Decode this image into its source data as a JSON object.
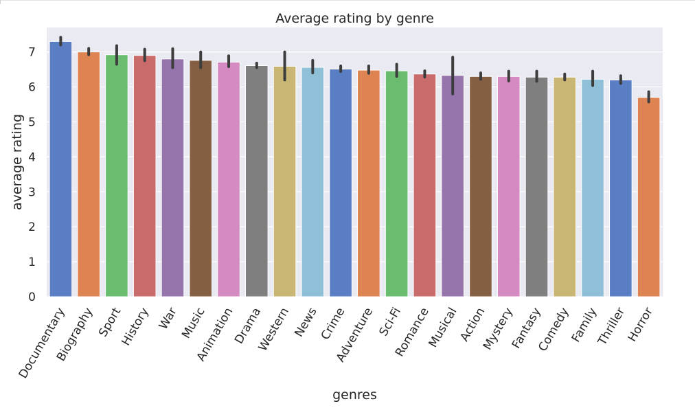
{
  "chart_data": {
    "type": "bar",
    "title": "Average rating by genre",
    "xlabel": "genres",
    "ylabel": "average rating",
    "ylim": [
      0,
      7.7
    ],
    "yticks": [
      0,
      1,
      2,
      3,
      4,
      5,
      6,
      7
    ],
    "grid": true,
    "categories": [
      "Documentary",
      "Biography",
      "Sport",
      "History",
      "War",
      "Music",
      "Animation",
      "Drama",
      "Western",
      "News",
      "Crime",
      "Adventure",
      "Sci-Fi",
      "Romance",
      "Musical",
      "Action",
      "Mystery",
      "Fantasy",
      "Comedy",
      "Family",
      "Thriller",
      "Horror"
    ],
    "values": [
      7.3,
      7.0,
      6.92,
      6.9,
      6.8,
      6.76,
      6.71,
      6.61,
      6.59,
      6.56,
      6.51,
      6.48,
      6.46,
      6.37,
      6.33,
      6.3,
      6.3,
      6.28,
      6.28,
      6.22,
      6.2,
      5.7
    ],
    "ci_low": [
      7.2,
      6.92,
      6.65,
      6.75,
      6.55,
      6.55,
      6.58,
      6.55,
      6.2,
      6.4,
      6.44,
      6.39,
      6.3,
      6.28,
      5.8,
      6.22,
      6.17,
      6.16,
      6.2,
      6.04,
      6.1,
      5.57
    ],
    "ci_high": [
      7.42,
      7.1,
      7.18,
      7.08,
      7.09,
      7.0,
      6.89,
      6.68,
      7.0,
      6.76,
      6.6,
      6.6,
      6.65,
      6.46,
      6.85,
      6.4,
      6.45,
      6.45,
      6.37,
      6.45,
      6.32,
      5.86
    ],
    "colors": [
      "#5a7ec3",
      "#dd8452",
      "#6abd6f",
      "#c86b6a",
      "#9575ab",
      "#855f44",
      "#d58bc2",
      "#7f7f7f",
      "#c9b574",
      "#8fc0d8",
      "#5a7ec3",
      "#dd8452",
      "#6abd6f",
      "#c86b6a",
      "#9575ab",
      "#855f44",
      "#d58bc2",
      "#7f7f7f",
      "#c9b574",
      "#8fc0d8",
      "#5a7ec3",
      "#dd8452"
    ],
    "axes_facecolor": "#eaeaf2",
    "errorbar_color": "#3d3d3d"
  }
}
